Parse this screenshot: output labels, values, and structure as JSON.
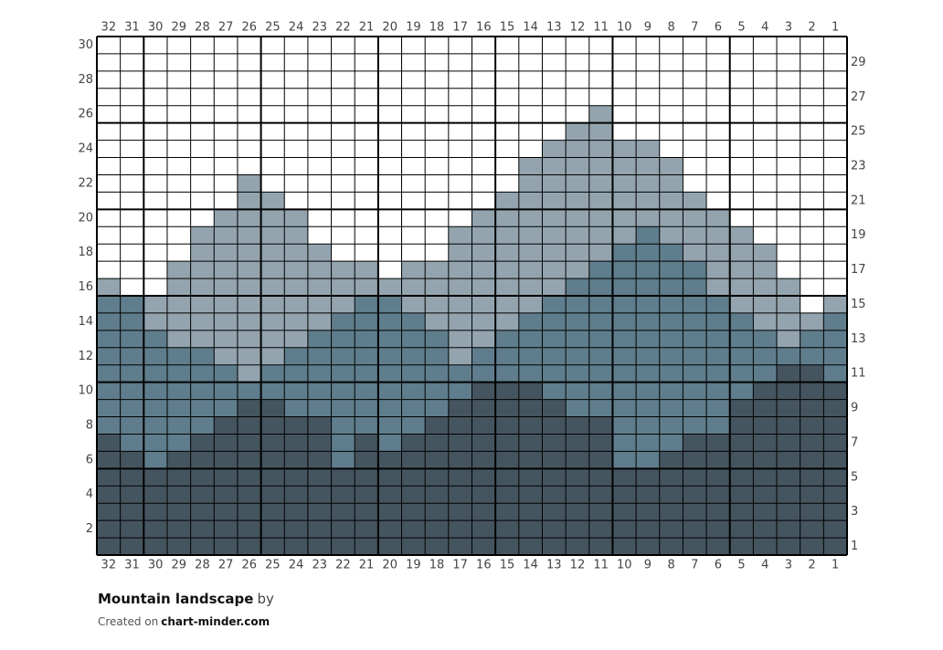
{
  "chart": {
    "columns": [
      32,
      31,
      30,
      29,
      28,
      27,
      26,
      25,
      24,
      23,
      22,
      21,
      20,
      19,
      18,
      17,
      16,
      15,
      14,
      13,
      12,
      11,
      10,
      9,
      8,
      7,
      6,
      5,
      4,
      3,
      2,
      1
    ],
    "rows_left": [
      30,
      28,
      26,
      24,
      22,
      20,
      18,
      16,
      14,
      12,
      10,
      8,
      6,
      4,
      2
    ],
    "rows_right": [
      29,
      27,
      25,
      23,
      21,
      19,
      17,
      15,
      13,
      11,
      9,
      7,
      5,
      3,
      1
    ],
    "palette": {
      "0": "#ffffff",
      "1": "#93a4ae",
      "2": "#5f7d8c",
      "3": "#45555f"
    },
    "cells": [
      "00000000000000000000000000000000",
      "00000000000000000000000000000000",
      "00000000000000000000000000000000",
      "00000000000000000000000000000000",
      "00000000000000000000010000000000",
      "00000000000000000000110000000000",
      "00000000000000000001111100000000",
      "00000000000000000011111110000000",
      "00000010000000000011111110000000",
      "00000011000000000111111111000000",
      "00000111100000001111111111100000",
      "00001111100000011111111211110000",
      "00001111110000011111112221111000",
      "00011111111101111111122222111000",
      "10011111111111111111222222111100",
      "22111111111221111112222222211101",
      "22111111112222111122222222221112",
      "22211111122222211222222222222122",
      "22222111222222212222222222222222",
      "22222212222222222222222222222332",
      "22222222222222223332222222223333",
      "22222233222222233333222222233333",
      "22222333332222333333332222233333",
      "32223333332323333333332223333333",
      "33233333332333333333332233333333",
      "33333333333333333333333333333333",
      "33333333333333333333333333333333",
      "33333333333333333333333333333333",
      "33333333333333333333333333333333",
      "33333333333333333333333333333333"
    ]
  },
  "footer": {
    "title": "Mountain landscape",
    "by": "by",
    "created_on": "Created on",
    "site": "chart-minder.com"
  }
}
